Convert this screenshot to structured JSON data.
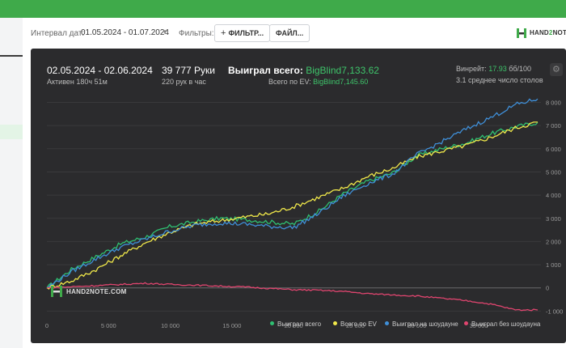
{
  "filters": {
    "interval_label": "Интервал дат:",
    "interval_value": "01.05.2024 - 01.07.2024",
    "filters_label": "Фильтры:",
    "filter_button": "ФИЛЬТР...",
    "file_button": "ФАЙЛ...",
    "logo_a": "HAND",
    "logo_b": "2",
    "logo_c": "NOTE"
  },
  "stats": {
    "date_range": "02.05.2024 - 02.06.2024",
    "active": "Активен 180ч 51м",
    "hands": "39 777 Руки",
    "hands_per_hour": "220 рук в час",
    "won_label": "Выиграл всего:",
    "won_value": "BigBlind7,133.62",
    "ev_label": "Всего по EV:",
    "ev_value": "BigBlind7,145.60",
    "winrate_label": "Винрейт:",
    "winrate_value": "17.93",
    "winrate_suffix": "бб/100",
    "avg_tables": "3.1 среднее число столов"
  },
  "watermark": "HAND2NOTE.COM",
  "colors": {
    "won": "#2fbf71",
    "ev": "#f0e84a",
    "showdown": "#3f8fd8",
    "nonshowdown": "#e0456f"
  },
  "chart_data": {
    "type": "line",
    "xlim": [
      0,
      39777
    ],
    "ylim": [
      -1300,
      8400
    ],
    "x_ticks": [
      {
        "v": 0,
        "label": "0"
      },
      {
        "v": 5000,
        "label": "5 000"
      },
      {
        "v": 10000,
        "label": "10 000"
      },
      {
        "v": 15000,
        "label": "15 000"
      },
      {
        "v": 20000,
        "label": "20 000"
      },
      {
        "v": 25000,
        "label": "25 000"
      },
      {
        "v": 30000,
        "label": "30 000"
      },
      {
        "v": 35000,
        "label": "35 000"
      }
    ],
    "y_ticks": [
      {
        "v": -1000,
        "label": "-1 000"
      },
      {
        "v": 0,
        "label": "0"
      },
      {
        "v": 1000,
        "label": "1 000"
      },
      {
        "v": 2000,
        "label": "2 000"
      },
      {
        "v": 3000,
        "label": "3 000"
      },
      {
        "v": 4000,
        "label": "4 000"
      },
      {
        "v": 5000,
        "label": "5 000"
      },
      {
        "v": 6000,
        "label": "6 000"
      },
      {
        "v": 7000,
        "label": "7 000"
      },
      {
        "v": 8000,
        "label": "8 000"
      }
    ],
    "legend_position": "bottom-right",
    "x": [
      0,
      2000,
      4000,
      6000,
      8000,
      10000,
      12000,
      14000,
      16000,
      18000,
      20000,
      22000,
      24000,
      26000,
      28000,
      30000,
      32000,
      34000,
      36000,
      38000,
      39777
    ],
    "series": [
      {
        "name": "Выиграл всего",
        "key": "won",
        "values": [
          0,
          800,
          1350,
          1900,
          2200,
          2650,
          2850,
          3000,
          2950,
          2850,
          2750,
          3300,
          4050,
          4600,
          4950,
          5700,
          6000,
          6250,
          6650,
          6950,
          7134
        ]
      },
      {
        "name": "Всего по EV",
        "key": "ev",
        "values": [
          0,
          300,
          800,
          1400,
          1950,
          2400,
          2750,
          2900,
          3050,
          3200,
          3500,
          3900,
          4300,
          4800,
          5150,
          5650,
          5900,
          6150,
          6500,
          6900,
          7146
        ]
      },
      {
        "name": "Выиграл на шоудауне",
        "key": "showdown",
        "values": [
          0,
          700,
          1250,
          1750,
          2100,
          2450,
          2700,
          2800,
          2750,
          2650,
          2600,
          3200,
          3950,
          4500,
          4900,
          5750,
          6300,
          6850,
          7350,
          7900,
          8150
        ]
      },
      {
        "name": "Выиграл без шоудауна",
        "key": "nonshowdown",
        "values": [
          0,
          50,
          100,
          150,
          200,
          150,
          120,
          80,
          40,
          -20,
          -80,
          -100,
          -150,
          -250,
          -300,
          -350,
          -450,
          -550,
          -700,
          -950,
          -950
        ]
      }
    ]
  }
}
